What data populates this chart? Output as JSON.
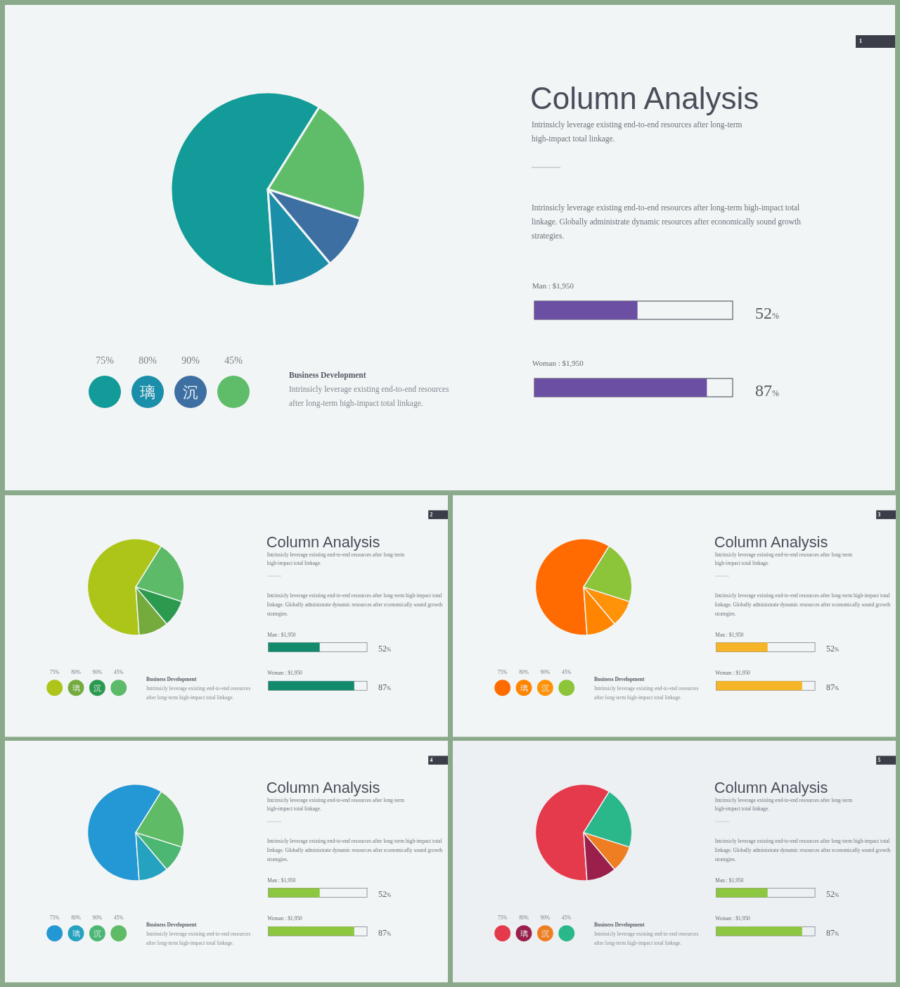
{
  "chart_data": [
    {
      "type": "pie",
      "categories": [
        null,
        null,
        null,
        null
      ],
      "values": [
        60,
        10,
        9,
        21
      ],
      "colors": [
        "#129b98",
        "#1b8ea9",
        "#3e6fa3",
        "#5fbd6a"
      ],
      "annotations": [
        "75%",
        "80%",
        "90%",
        "45%",
        "璃",
        "沉",
        "Business Development",
        "Intrinsicly leverage existing end-to-end resources after long-term high-impact total linkage."
      ]
    },
    {
      "type": "bar",
      "orientation": "horizontal",
      "title": "Column Analysis",
      "subtitle": "Intrinsicly leverage existing end-to-end resources after long-term high-impact total linkage.",
      "annotations": [
        "Intrinsicly leverage existing end-to-end resources after long-term high-impact total linkage. Globally administrate dynamic resources after economically sound growth strategies.",
        "1"
      ],
      "categories": [
        "Man : $1,950",
        "Woman : $1,950"
      ],
      "values": [
        52,
        87
      ],
      "value_labels": [
        "52%",
        "87%"
      ],
      "color": "#6b4fa3",
      "xlim": [
        0,
        100
      ]
    },
    {
      "type": "pie",
      "categories": [
        null,
        null,
        null,
        null
      ],
      "values": [
        60,
        10,
        9,
        21
      ],
      "colors": [
        "#adc418",
        "#74ab3c",
        "#2c9a4e",
        "#5cba68"
      ],
      "annotations": [
        "75%",
        "80%",
        "90%",
        "45%",
        "璃",
        "沉",
        "Business Development",
        "Intrinsicly leverage existing end-to-end resources after long-term high-impact total linkage."
      ]
    },
    {
      "type": "bar",
      "orientation": "horizontal",
      "title": "Column Analysis",
      "subtitle": "Intrinsicly leverage existing end-to-end resources after long-term high-impact total linkage.",
      "annotations": [
        "Intrinsicly leverage existing end-to-end resources after long-term high-impact total linkage. Globally administrate dynamic resources after economically sound growth strategies.",
        "2"
      ],
      "categories": [
        "Man : $1,950",
        "Woman : $1,950"
      ],
      "values": [
        52,
        87
      ],
      "value_labels": [
        "52%",
        "87%"
      ],
      "color": "#138a6c",
      "xlim": [
        0,
        100
      ]
    },
    {
      "type": "pie",
      "categories": [
        null,
        null,
        null,
        null
      ],
      "values": [
        60,
        10,
        9,
        21
      ],
      "colors": [
        "#ff6b00",
        "#ff8500",
        "#ff9208",
        "#8cc43a"
      ],
      "annotations": [
        "75%",
        "80%",
        "90%",
        "45%",
        "璃",
        "沉",
        "Business Development",
        "Intrinsicly leverage existing end-to-end resources after long-term high-impact total linkage."
      ]
    },
    {
      "type": "bar",
      "orientation": "horizontal",
      "title": "Column Analysis",
      "subtitle": "Intrinsicly leverage existing end-to-end resources after long-term high-impact total linkage.",
      "annotations": [
        "Intrinsicly leverage existing end-to-end resources after long-term high-impact total linkage. Globally administrate dynamic resources after economically sound growth strategies.",
        "3"
      ],
      "categories": [
        "Man : $1,950",
        "Woman : $1,950"
      ],
      "values": [
        52,
        87
      ],
      "value_labels": [
        "52%",
        "87%"
      ],
      "color": "#f6b427",
      "xlim": [
        0,
        100
      ]
    },
    {
      "type": "pie",
      "categories": [
        null,
        null,
        null,
        null
      ],
      "values": [
        60,
        10,
        9,
        21
      ],
      "colors": [
        "#2497d5",
        "#24a2c0",
        "#4cb673",
        "#5fbb66"
      ],
      "annotations": [
        "75%",
        "80%",
        "90%",
        "45%",
        "璃",
        "沉",
        "Business Development",
        "Intrinsicly leverage existing end-to-end resources after long-term high-impact total linkage."
      ]
    },
    {
      "type": "bar",
      "orientation": "horizontal",
      "title": "Column Analysis",
      "subtitle": "Intrinsicly leverage existing end-to-end resources after long-term high-impact total linkage.",
      "annotations": [
        "Intrinsicly leverage existing end-to-end resources after long-term high-impact total linkage. Globally administrate dynamic resources after economically sound growth strategies.",
        "4"
      ],
      "categories": [
        "Man : $1,950",
        "Woman : $1,950"
      ],
      "values": [
        52,
        87
      ],
      "value_labels": [
        "52%",
        "87%"
      ],
      "color": "#8dc63f",
      "xlim": [
        0,
        100
      ]
    },
    {
      "type": "pie",
      "categories": [
        null,
        null,
        null,
        null
      ],
      "values": [
        60,
        10,
        9,
        21
      ],
      "colors": [
        "#e5394c",
        "#9a1f4a",
        "#ef7e22",
        "#2ab78a"
      ],
      "annotations": [
        "75%",
        "80%",
        "90%",
        "45%",
        "璃",
        "沉",
        "Business Development",
        "Intrinsicly leverage existing end-to-end resources after long-term high-impact total linkage."
      ]
    },
    {
      "type": "bar",
      "orientation": "horizontal",
      "title": "Column Analysis",
      "subtitle": "Intrinsicly leverage existing end-to-end resources after long-term high-impact total linkage.",
      "annotations": [
        "Intrinsicly leverage existing end-to-end resources after long-term high-impact total linkage. Globally administrate dynamic resources after economically sound growth strategies.",
        "5"
      ],
      "categories": [
        "Man : $1,950",
        "Woman : $1,950"
      ],
      "values": [
        52,
        87
      ],
      "value_labels": [
        "52%",
        "87%"
      ],
      "color": "#8dc63f",
      "xlim": [
        0,
        100
      ]
    }
  ]
}
